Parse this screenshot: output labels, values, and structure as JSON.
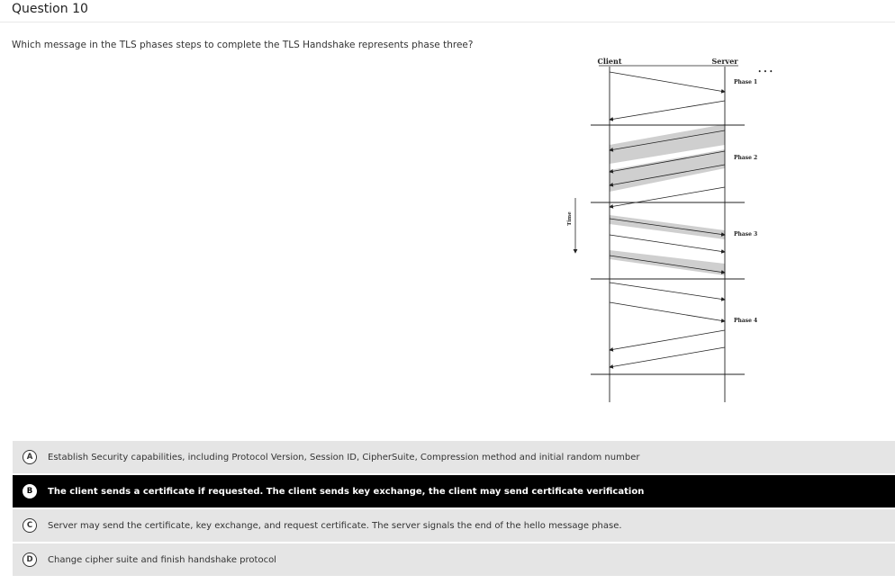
{
  "question": {
    "title": "Question 10",
    "prompt": "Which message in the TLS phases steps to complete the TLS Handshake represents phase three?"
  },
  "diagram": {
    "client_label": "Client",
    "server_label": "Server",
    "time_label": "Time",
    "ellipsis": "• • •",
    "phases": [
      "Phase 1",
      "Phase 2",
      "Phase 3",
      "Phase 4"
    ]
  },
  "options": [
    {
      "letter": "A",
      "text": "Establish Security capabilities, including Protocol Version, Session ID, CipherSuite, Compression method and initial random number",
      "selected": false
    },
    {
      "letter": "B",
      "text": "The client sends a certificate if requested. The client sends key exchange, the client may send certificate verification",
      "selected": true
    },
    {
      "letter": "C",
      "text": "Server may send the certificate, key exchange, and request certificate. The server signals the end of the hello message phase.",
      "selected": false
    },
    {
      "letter": "D",
      "text": "Change cipher suite and finish handshake protocol",
      "selected": false
    }
  ],
  "colors": {
    "selected_bg": "#000000",
    "option_bg": "#e5e5e5",
    "shade": "#cfcfcf"
  }
}
